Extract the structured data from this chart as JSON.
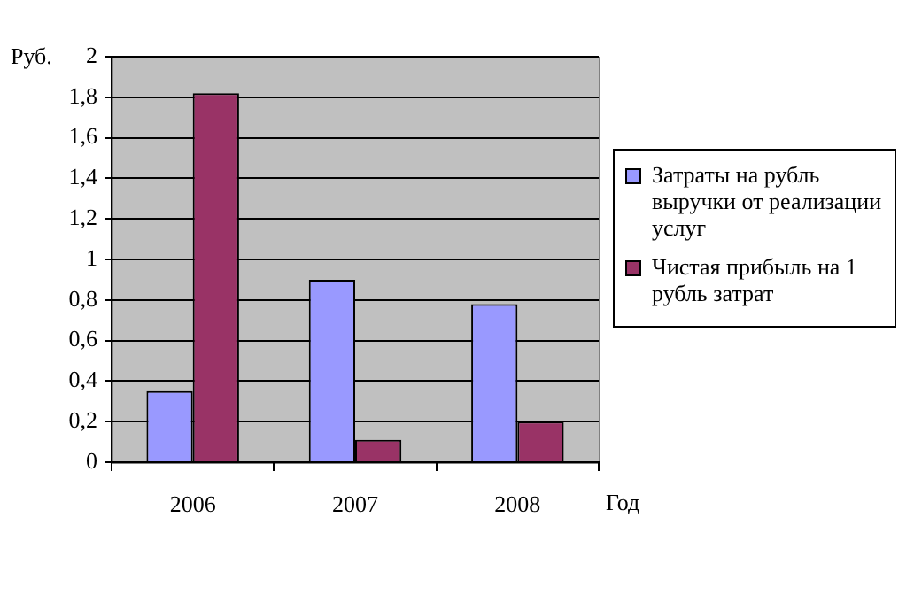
{
  "chart_data": {
    "type": "bar",
    "ylabel": "Руб.",
    "xlabel": "Год",
    "categories": [
      "2006",
      "2007",
      "2008"
    ],
    "series": [
      {
        "name": "Затраты на рубль выручки от реализации услуг",
        "color": "#9999ff",
        "values": [
          0.35,
          0.9,
          0.78
        ]
      },
      {
        "name": "Чистая прибыль на 1 рубль затрат",
        "color": "#993366",
        "values": [
          1.82,
          0.11,
          0.2
        ]
      }
    ],
    "ylim": [
      0,
      2
    ],
    "yticks": [
      0,
      {
        "value": 0.2,
        "label": "0,2"
      },
      {
        "value": 0.4,
        "label": "0,4"
      },
      {
        "value": 0.6,
        "label": "0,6"
      },
      {
        "value": 0.8,
        "label": "0,8"
      },
      1,
      {
        "value": 1.2,
        "label": "1,2"
      },
      {
        "value": 1.4,
        "label": "1,4"
      },
      {
        "value": 1.6,
        "label": "1,6"
      },
      {
        "value": 1.8,
        "label": "1,8"
      },
      2
    ],
    "grid": "y",
    "legend": "right"
  }
}
